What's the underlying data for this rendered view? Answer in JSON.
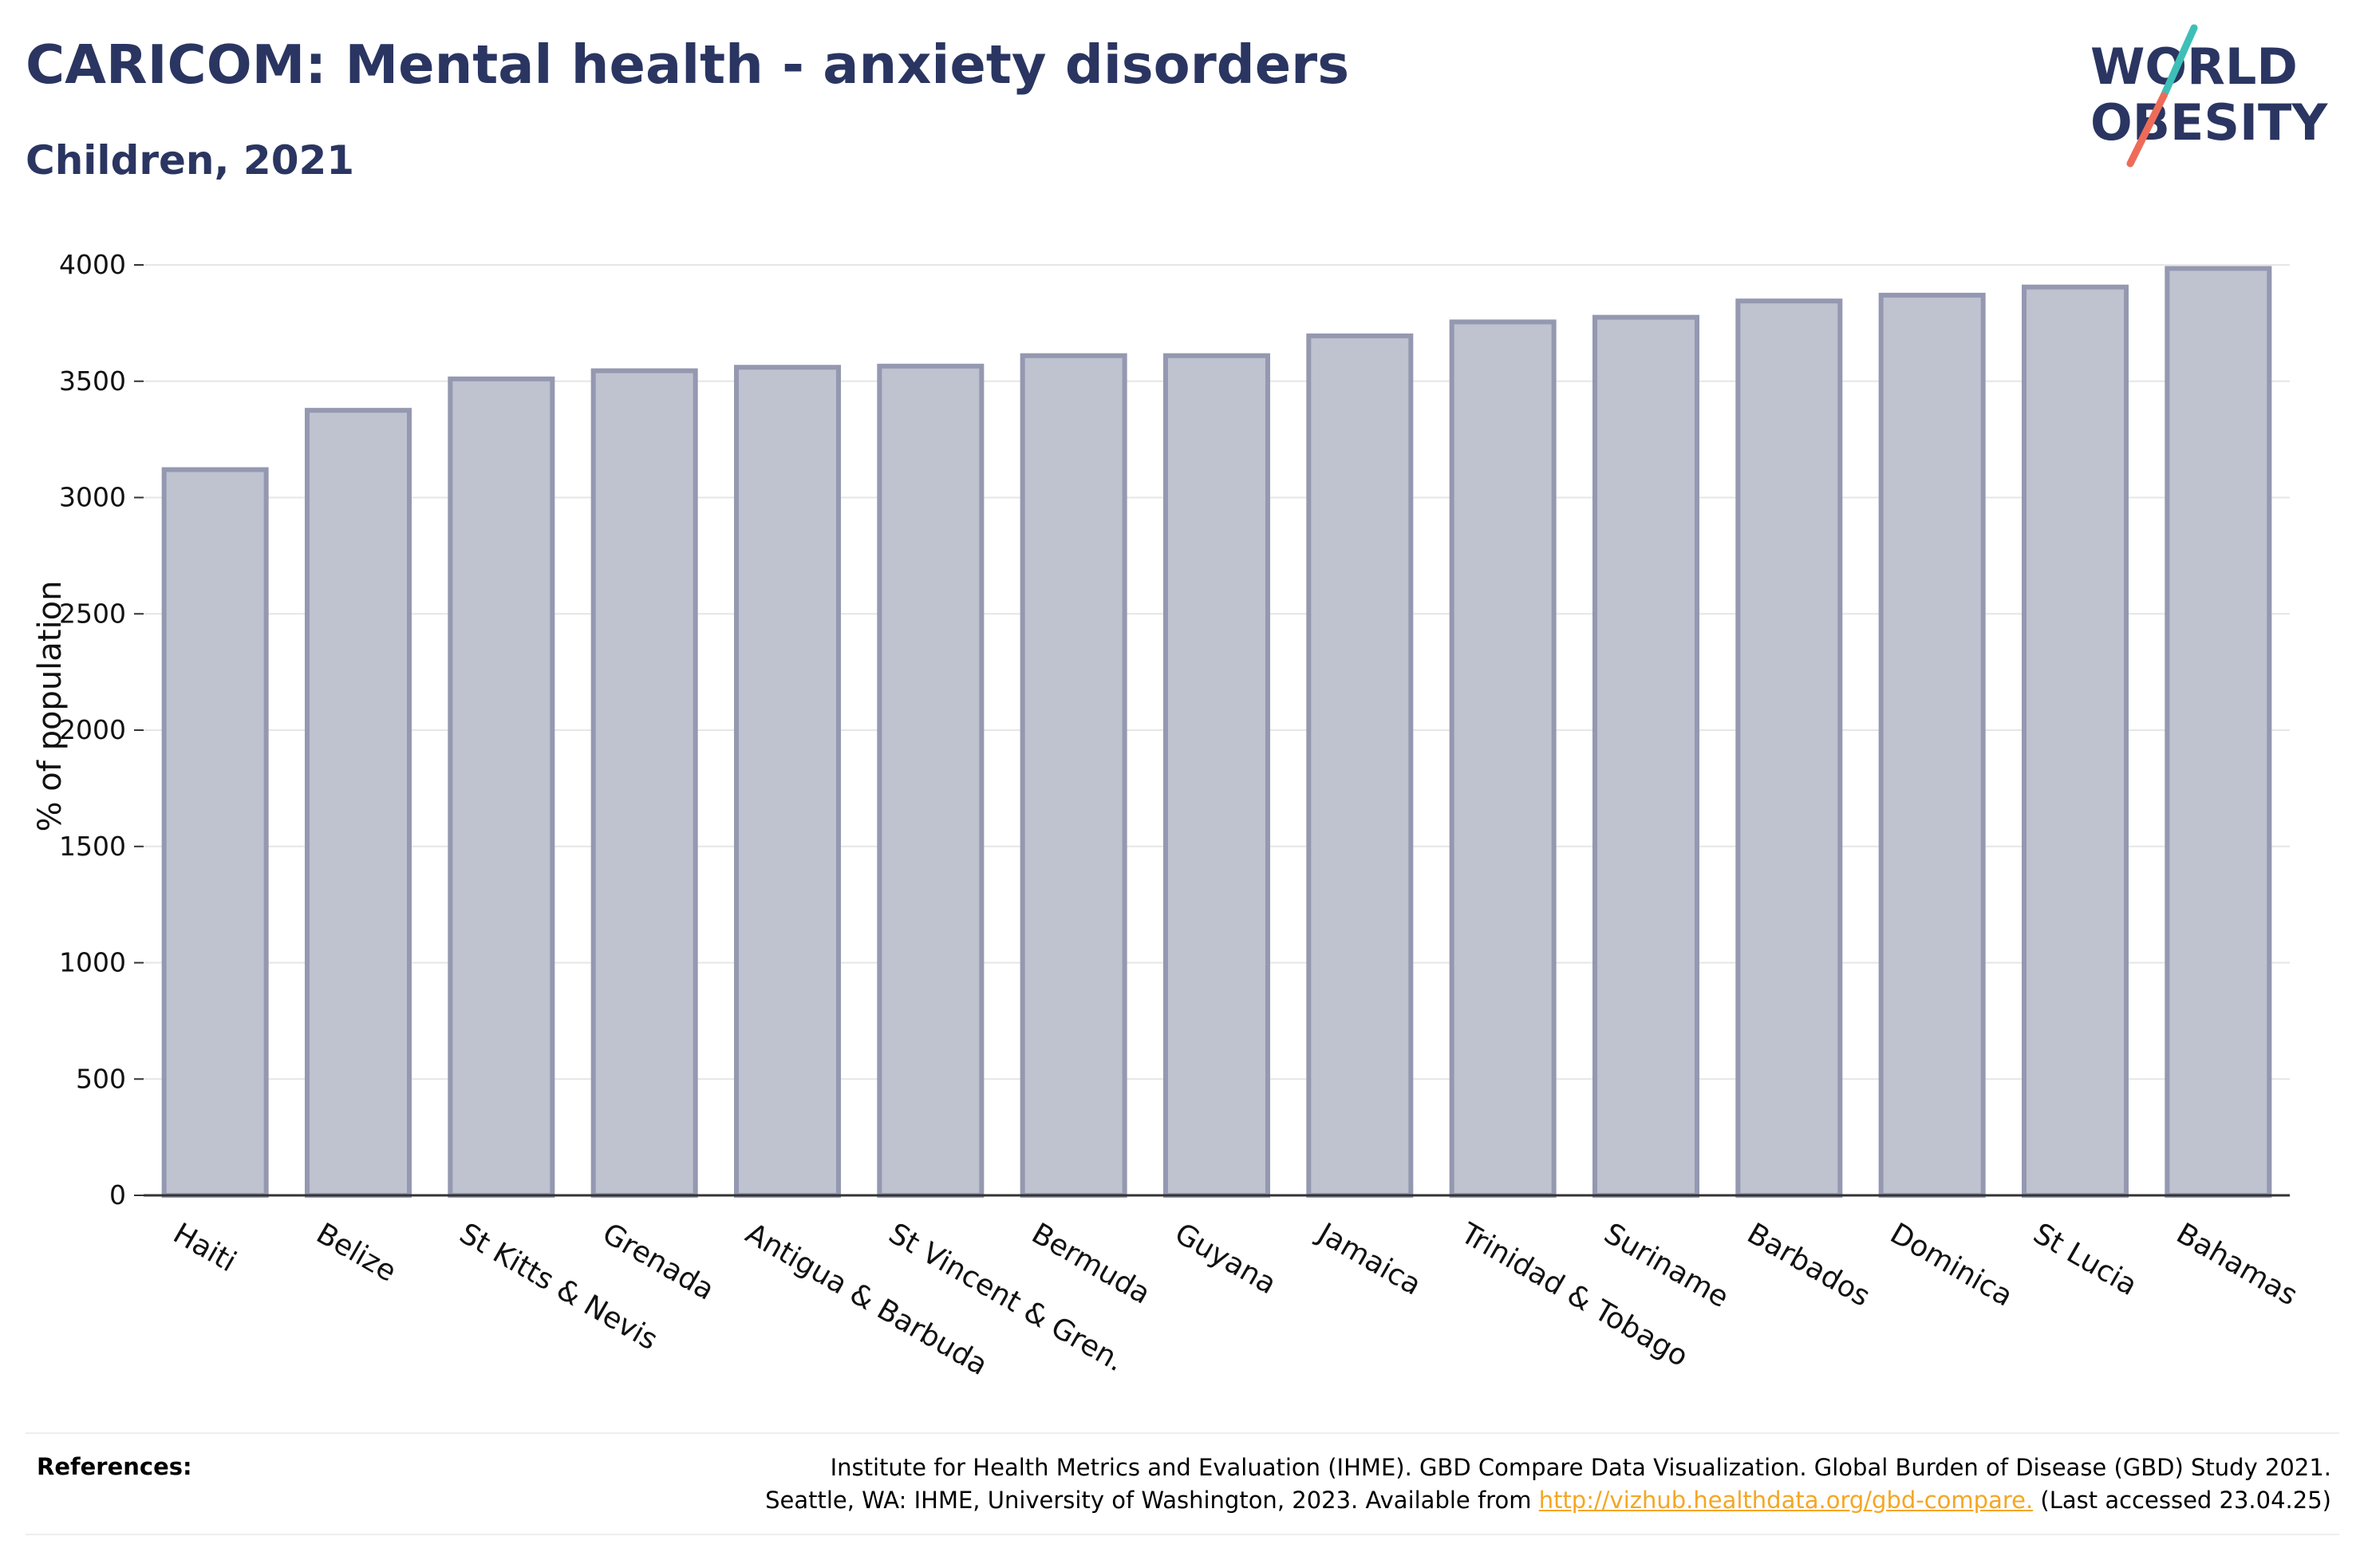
{
  "header": {
    "title": "CARICOM: Mental health - anxiety disorders",
    "subtitle": "Children, 2021"
  },
  "logo": {
    "line1": "WORLD",
    "line2": "OBESITY",
    "text_color": "#2a3561",
    "slash_top_color": "#3dbfb8",
    "slash_bottom_color": "#ee6b5a"
  },
  "chart_data": {
    "type": "bar",
    "title": "CARICOM: Mental health - anxiety disorders",
    "subtitle": "Children, 2021",
    "xlabel": "",
    "ylabel": "% of population",
    "ylim": [
      0,
      4000
    ],
    "yticks": [
      0,
      500,
      1000,
      1500,
      2000,
      2500,
      3000,
      3500,
      4000
    ],
    "grid": true,
    "bar_fill": "#bfc2cf",
    "bar_stroke": "#9498b0",
    "categories": [
      "Haiti",
      "Belize",
      "St Kitts & Nevis",
      "Grenada",
      "Antigua & Barbuda",
      "St Vincent & Gren.",
      "Bermuda",
      "Guyana",
      "Jamaica",
      "Trinidad & Tobago",
      "Suriname",
      "Barbados",
      "Dominica",
      "St Lucia",
      "Bahamas"
    ],
    "values": [
      3120,
      3375,
      3510,
      3545,
      3560,
      3565,
      3610,
      3610,
      3695,
      3755,
      3775,
      3845,
      3870,
      3905,
      3985
    ]
  },
  "references": {
    "label": "References:",
    "line1": "Institute for Health Metrics and Evaluation (IHME). GBD Compare Data Visualization. Global Burden of Disease (GBD) Study 2021.",
    "line2_prefix": "Seattle, WA: IHME, University of Washington, 2023. Available from ",
    "link_text": "http://vizhub.healthdata.org/gbd-compare.",
    "line2_suffix": " (Last accessed 23.04.25)"
  }
}
